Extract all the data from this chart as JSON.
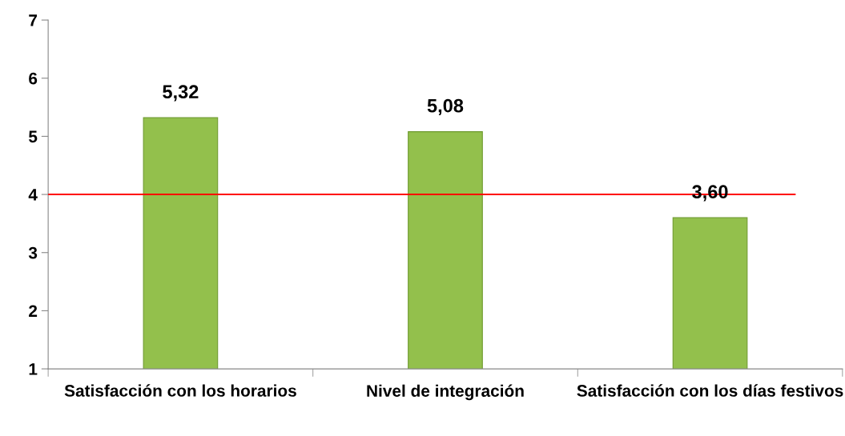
{
  "chart_data": {
    "type": "bar",
    "categories": [
      "Satisfacción con los horarios",
      "Nivel de integración",
      "Satisfacción con los días festivos"
    ],
    "values": [
      5.32,
      5.08,
      3.6
    ],
    "value_labels": [
      "5,32",
      "5,08",
      "3,60"
    ],
    "color": "#93c04c",
    "ylim": [
      1,
      7
    ],
    "yticks": [
      1,
      2,
      3,
      4,
      5,
      6,
      7
    ],
    "ref_lines": [
      {
        "axis": "y",
        "value": 4,
        "color": "#ff0000",
        "line_style": "solid"
      }
    ],
    "grid": false,
    "legend": false
  }
}
